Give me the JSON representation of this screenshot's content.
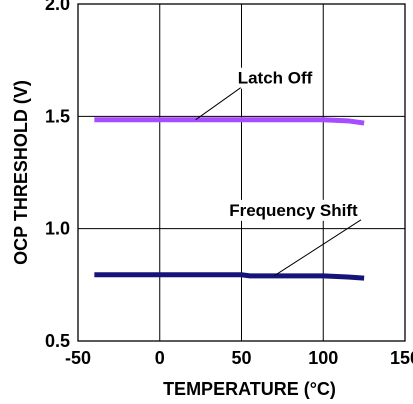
{
  "chart_data": {
    "type": "line",
    "title": "",
    "xlabel": "TEMPERATURE (°C)",
    "ylabel": "OCP THRESHOLD (V)",
    "xlim": [
      -50,
      150
    ],
    "ylim": [
      0.5,
      2.0
    ],
    "x_ticks": [
      -50,
      0,
      50,
      100,
      150
    ],
    "x_tick_labels": [
      "-50",
      "0",
      "50",
      "100",
      "150"
    ],
    "y_ticks": [
      0.5,
      1.0,
      1.5,
      2.0
    ],
    "y_tick_labels": [
      "0.5",
      "1.0",
      "1.5",
      "2.0"
    ],
    "grid": true,
    "series": [
      {
        "name": "Latch Off",
        "color": "#a64dff",
        "x": [
          -40,
          0,
          25,
          50,
          75,
          100,
          115,
          125
        ],
        "y": [
          1.485,
          1.485,
          1.485,
          1.485,
          1.485,
          1.485,
          1.48,
          1.47
        ]
      },
      {
        "name": "Frequency Shift",
        "color": "#14147a",
        "x": [
          -40,
          0,
          25,
          50,
          55,
          75,
          100,
          115,
          125
        ],
        "y": [
          0.795,
          0.795,
          0.795,
          0.795,
          0.79,
          0.79,
          0.79,
          0.785,
          0.78
        ]
      }
    ],
    "annotations": [
      {
        "text": "Latch Off",
        "series": 0,
        "point_x": 22
      },
      {
        "text": "Frequency Shift",
        "series": 1,
        "point_x": 70
      }
    ]
  }
}
